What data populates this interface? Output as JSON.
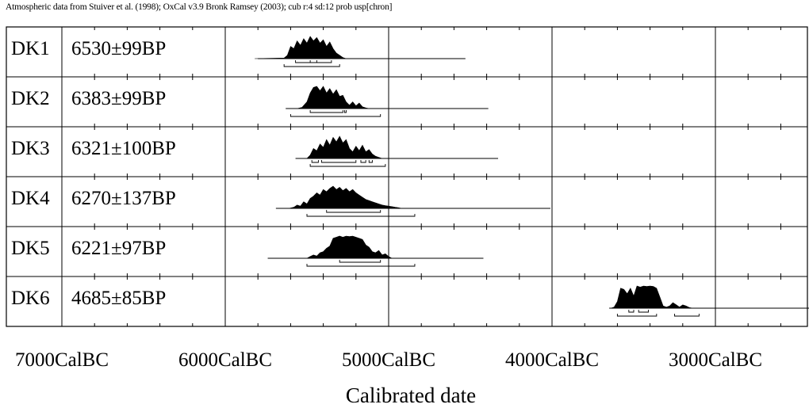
{
  "caption": "Atmospheric data from Stuiver et al. (1998); OxCal v3.9 Bronk Ramsey (2003); cub r:4 sd:12 prob usp[chron]",
  "chart_data": {
    "type": "area",
    "title": "",
    "xlabel": "Calibrated date",
    "ylabel": "",
    "x_axis_direction": "decreasing (older dates left)",
    "xlim": [
      7000,
      2000
    ],
    "x_ticks": [
      {
        "value": 7000,
        "label": "7000CalBC"
      },
      {
        "value": 6000,
        "label": "6000CalBC"
      },
      {
        "value": 5000,
        "label": "5000CalBC"
      },
      {
        "value": 4000,
        "label": "4000CalBC"
      },
      {
        "value": 3000,
        "label": "3000CalBC"
      }
    ],
    "minor_tick_step": 200,
    "grid": "vertical at major ticks, horizontal row separators",
    "series": [
      {
        "name": "DK1",
        "date_label": "6530±99BP",
        "line_range": [
          5800,
          4530
        ],
        "profile": [
          [
            5820,
            0
          ],
          [
            5640,
            0.03
          ],
          [
            5620,
            0.15
          ],
          [
            5600,
            0.55
          ],
          [
            5580,
            0.45
          ],
          [
            5560,
            0.8
          ],
          [
            5540,
            0.6
          ],
          [
            5520,
            0.9
          ],
          [
            5500,
            0.7
          ],
          [
            5480,
            1.0
          ],
          [
            5460,
            0.8
          ],
          [
            5440,
            0.95
          ],
          [
            5420,
            0.7
          ],
          [
            5400,
            0.85
          ],
          [
            5380,
            0.55
          ],
          [
            5360,
            0.75
          ],
          [
            5340,
            0.45
          ],
          [
            5320,
            0.25
          ],
          [
            5300,
            0.15
          ],
          [
            5280,
            0.05
          ],
          [
            5260,
            0
          ]
        ],
        "ranges_68": [
          [
            5570,
            5350
          ],
          [
            5480,
            5440
          ]
        ],
        "ranges_95": [
          [
            5640,
            5300
          ]
        ]
      },
      {
        "name": "DK2",
        "date_label": "6383±99BP",
        "line_range": [
          5630,
          4390
        ],
        "profile": [
          [
            5560,
            0
          ],
          [
            5530,
            0.05
          ],
          [
            5500,
            0.3
          ],
          [
            5480,
            0.7
          ],
          [
            5460,
            0.95
          ],
          [
            5440,
            1.0
          ],
          [
            5420,
            0.8
          ],
          [
            5400,
            1.0
          ],
          [
            5380,
            0.7
          ],
          [
            5360,
            0.9
          ],
          [
            5340,
            0.65
          ],
          [
            5320,
            0.85
          ],
          [
            5300,
            0.55
          ],
          [
            5280,
            0.6
          ],
          [
            5260,
            0.3
          ],
          [
            5240,
            0.15
          ],
          [
            5220,
            0.3
          ],
          [
            5200,
            0.12
          ],
          [
            5180,
            0.25
          ],
          [
            5160,
            0.08
          ],
          [
            5140,
            0.03
          ],
          [
            5120,
            0
          ]
        ],
        "ranges_68": [
          [
            5480,
            5280
          ],
          [
            5270,
            5260
          ]
        ],
        "ranges_95": [
          [
            5600,
            5050
          ]
        ]
      },
      {
        "name": "DK3",
        "date_label": "6321±100BP",
        "line_range": [
          5570,
          4330
        ],
        "profile": [
          [
            5500,
            0
          ],
          [
            5480,
            0.15
          ],
          [
            5460,
            0.45
          ],
          [
            5440,
            0.35
          ],
          [
            5420,
            0.65
          ],
          [
            5400,
            0.5
          ],
          [
            5380,
            0.85
          ],
          [
            5360,
            0.6
          ],
          [
            5340,
            0.95
          ],
          [
            5320,
            0.75
          ],
          [
            5300,
            1.0
          ],
          [
            5280,
            0.7
          ],
          [
            5260,
            0.85
          ],
          [
            5240,
            0.45
          ],
          [
            5220,
            0.3
          ],
          [
            5200,
            0.55
          ],
          [
            5180,
            0.35
          ],
          [
            5160,
            0.6
          ],
          [
            5140,
            0.3
          ],
          [
            5120,
            0.4
          ],
          [
            5100,
            0.2
          ],
          [
            5080,
            0.1
          ],
          [
            5060,
            0.05
          ],
          [
            5040,
            0
          ]
        ],
        "ranges_68": [
          [
            5470,
            5430
          ],
          [
            5410,
            5200
          ],
          [
            5170,
            5140
          ],
          [
            5120,
            5100
          ]
        ],
        "ranges_95": [
          [
            5480,
            5020
          ]
        ]
      },
      {
        "name": "DK4",
        "date_label": "6270±137BP",
        "line_range": [
          5690,
          4010
        ],
        "profile": [
          [
            5610,
            0
          ],
          [
            5580,
            0.05
          ],
          [
            5560,
            0.15
          ],
          [
            5540,
            0.1
          ],
          [
            5520,
            0.3
          ],
          [
            5500,
            0.2
          ],
          [
            5480,
            0.45
          ],
          [
            5460,
            0.55
          ],
          [
            5440,
            0.7
          ],
          [
            5420,
            0.6
          ],
          [
            5400,
            0.85
          ],
          [
            5380,
            0.75
          ],
          [
            5360,
            0.9
          ],
          [
            5340,
            1.0
          ],
          [
            5320,
            0.85
          ],
          [
            5300,
            0.95
          ],
          [
            5280,
            0.8
          ],
          [
            5260,
            0.9
          ],
          [
            5240,
            0.75
          ],
          [
            5220,
            0.85
          ],
          [
            5200,
            0.7
          ],
          [
            5180,
            0.6
          ],
          [
            5160,
            0.5
          ],
          [
            5140,
            0.4
          ],
          [
            5120,
            0.35
          ],
          [
            5100,
            0.3
          ],
          [
            5080,
            0.25
          ],
          [
            5060,
            0.2
          ],
          [
            5040,
            0.15
          ],
          [
            5020,
            0.12
          ],
          [
            5000,
            0.1
          ],
          [
            4980,
            0.08
          ],
          [
            4960,
            0.05
          ],
          [
            4940,
            0.03
          ],
          [
            4920,
            0
          ]
        ],
        "ranges_68": [
          [
            5380,
            5050
          ]
        ],
        "ranges_95": [
          [
            5500,
            4840
          ]
        ]
      },
      {
        "name": "DK5",
        "date_label": "6221±97BP",
        "line_range": [
          5740,
          4420
        ],
        "profile": [
          [
            5500,
            0
          ],
          [
            5480,
            0.08
          ],
          [
            5460,
            0.15
          ],
          [
            5440,
            0.1
          ],
          [
            5420,
            0.25
          ],
          [
            5400,
            0.3
          ],
          [
            5380,
            0.45
          ],
          [
            5360,
            0.55
          ],
          [
            5340,
            0.9
          ],
          [
            5320,
            0.95
          ],
          [
            5300,
            1.0
          ],
          [
            5280,
            0.95
          ],
          [
            5260,
            1.0
          ],
          [
            5240,
            0.98
          ],
          [
            5220,
            1.0
          ],
          [
            5200,
            0.95
          ],
          [
            5180,
            0.9
          ],
          [
            5160,
            0.85
          ],
          [
            5140,
            0.6
          ],
          [
            5120,
            0.5
          ],
          [
            5100,
            0.3
          ],
          [
            5080,
            0.25
          ],
          [
            5060,
            0.35
          ],
          [
            5040,
            0.15
          ],
          [
            5020,
            0.2
          ],
          [
            5000,
            0.08
          ],
          [
            4980,
            0
          ]
        ],
        "ranges_68": [
          [
            5300,
            5050
          ]
        ],
        "ranges_95": [
          [
            5500,
            4840
          ]
        ]
      },
      {
        "name": "DK6",
        "date_label": "4685±85BP",
        "line_range": [
          3650,
          2290
        ],
        "profile": [
          [
            3640,
            0
          ],
          [
            3620,
            0.05
          ],
          [
            3600,
            0.3
          ],
          [
            3580,
            0.9
          ],
          [
            3560,
            0.85
          ],
          [
            3540,
            0.65
          ],
          [
            3520,
            0.9
          ],
          [
            3500,
            0.55
          ],
          [
            3480,
            1.0
          ],
          [
            3460,
            0.95
          ],
          [
            3440,
            1.0
          ],
          [
            3420,
            0.98
          ],
          [
            3400,
            1.0
          ],
          [
            3380,
            0.98
          ],
          [
            3360,
            0.9
          ],
          [
            3340,
            0.5
          ],
          [
            3320,
            0.1
          ],
          [
            3300,
            0.05
          ],
          [
            3280,
            0.1
          ],
          [
            3260,
            0.25
          ],
          [
            3240,
            0.15
          ],
          [
            3220,
            0.05
          ],
          [
            3200,
            0.15
          ],
          [
            3180,
            0.1
          ],
          [
            3160,
            0.03
          ],
          [
            3140,
            0
          ]
        ],
        "ranges_68": [
          [
            3530,
            3500
          ],
          [
            3470,
            3410
          ]
        ],
        "ranges_95": [
          [
            3600,
            3360
          ],
          [
            3250,
            3100
          ]
        ]
      }
    ]
  }
}
